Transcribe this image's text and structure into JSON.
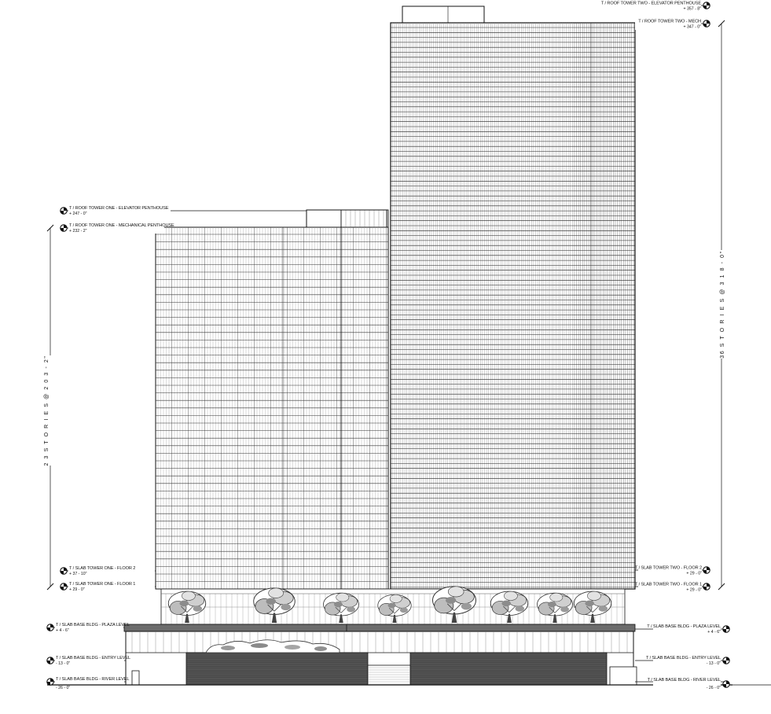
{
  "colors": {
    "ink": "#111111",
    "paper": "#ffffff",
    "gray": "#6c6c6c",
    "dark": "#555555"
  },
  "tower_two": {
    "elevator_penthouse": {
      "label": "T / ROOF   TOWER TWO -  ELEVATOR PENTHOUSE",
      "elev": "+ 357 - 8\""
    },
    "mech": {
      "label": "T / ROOF   TOWER TWO -  MECH",
      "elev": "+ 347 - 0\""
    },
    "floor2": {
      "label": "T / SLAB   TOWER TWO -  FLOOR 2",
      "elev": "+ 29 - 0\""
    },
    "floor1": {
      "label": "T / SLAB   TOWER TWO -  FLOOR 1",
      "elev": "+ 29 - 0\""
    },
    "stories": "36  S T O R I E S  @  3 1 8 - 0\""
  },
  "tower_one": {
    "elevator_penthouse": {
      "label": "T / ROOF   TOWER ONE -  ELEVATOR PENTHOUSE",
      "elev": "+ 247 - 0\""
    },
    "mech": {
      "label": "T / ROOF   TOWER ONE -  MECHANICAL PENTHOUSE",
      "elev": "+ 232 - 2\""
    },
    "floor2": {
      "label": "T / SLAB   TOWER ONE -  FLOOR 2",
      "elev": "+ 37 - 10\""
    },
    "floor1": {
      "label": "T / SLAB   TOWER ONE -  FLOOR 1",
      "elev": "+ 29 - 0\""
    },
    "stories": "2 3  S T O R I E S  @  2 0 3 - 2\""
  },
  "base": {
    "plaza": {
      "label": "T / SLAB   BASE BLDG -  PLAZA LEVEL",
      "elev": "+ 4 - 6\""
    },
    "entry": {
      "label": "T / SLAB   BASE BLDG -  ENTRY LEVEL",
      "elev": "- 13 - 0\""
    },
    "river": {
      "label": "T / SLAB   BASE BLDG -  RIVER LEVEL",
      "elev": "- 26 - 0\""
    }
  }
}
